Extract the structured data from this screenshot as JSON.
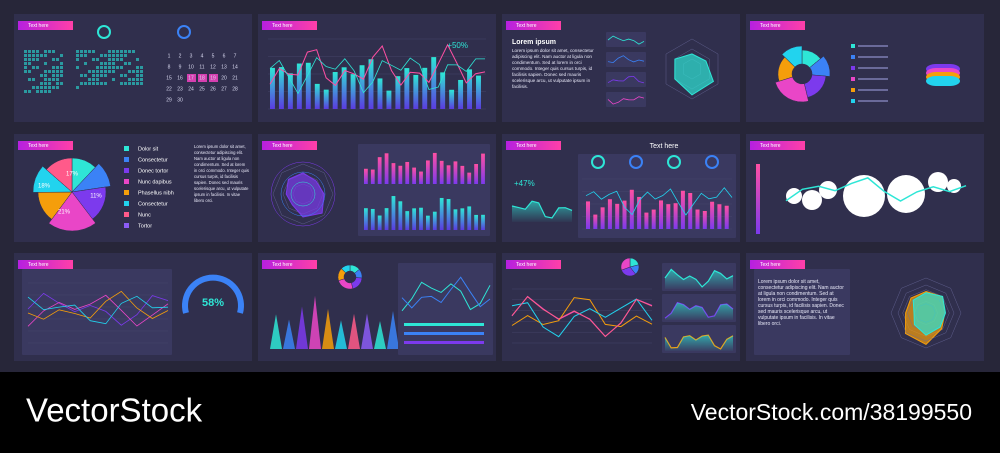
{
  "slides": [
    {
      "tag": "Text here",
      "days": [
        "1",
        "2",
        "3",
        "4",
        "5",
        "6",
        "7",
        "8",
        "9",
        "10",
        "11",
        "12",
        "13",
        "14",
        "15",
        "16",
        "17",
        "18",
        "19",
        "20",
        "21",
        "22",
        "23",
        "24",
        "25",
        "26",
        "27",
        "28",
        "29",
        "30"
      ]
    },
    {
      "tag": "Text here",
      "badge": "+50%"
    },
    {
      "tag": "Text here",
      "title": "Lorem ipsum",
      "text": "Lorem ipsum dolor sit amet, consectetur adipiscing elit. Nam auctor at ligula non condimentum. Sed at lorem in orci commodo. Integer quis cursus turpis, id facilisis sapien. Donec sed mauris scelerisque arcu, ut vulputate ipsum in facilisis."
    },
    {
      "tag": "Text here"
    },
    {
      "tag": "Text here",
      "pie_labels": [
        "17%",
        "18%",
        "21%",
        "11%"
      ],
      "legend": [
        "Dolor sit",
        "Consectetur",
        "Donec tortor",
        "Nunc dapibus",
        "Phasellus nibh",
        "Consectetur",
        "Nunc",
        "Tortor"
      ],
      "text": "Lorem ipsum dolor sit amet, consectetur adipiscing elit. Nam auctor at ligula non condimentum. Sed at lorem in orci commodo. Integer quis cursus turpis, id facilisis sapien. Donec sed mauris scelerisque arcu, ut vulputate ipsum in facilisis. In vitae libero orci."
    },
    {
      "tag": "Text here"
    },
    {
      "tag": "Text here",
      "heading": "Text here",
      "badge": "+47%"
    },
    {
      "tag": "Text here"
    },
    {
      "tag": "Text here",
      "gauge": "58%"
    },
    {
      "tag": "Text here"
    },
    {
      "tag": "Text here"
    },
    {
      "tag": "Text here",
      "text": "Lorem ipsum dolor sit amet, consectetur adipiscing elit. Nam auctor at ligula non condimentum. Sed at lorem in orci commodo. Integer quis cursus turpis, id facilisis sapien. Donec sed mauris scelerisque arcu, ut vulputate ipsum in facilisis. In vitae libero orci."
    }
  ],
  "footer": {
    "brand": "VectorStock",
    "id": "VectorStock.com/38199550"
  }
}
